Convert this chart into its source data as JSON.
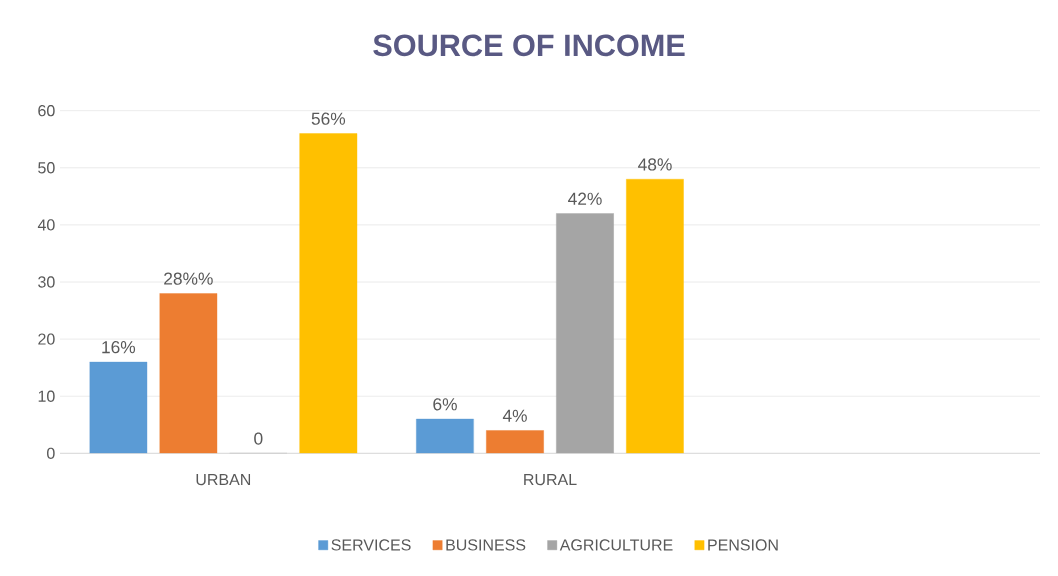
{
  "chart_data": {
    "type": "bar",
    "title": "SOURCE OF INCOME",
    "categories": [
      "URBAN",
      "RURAL",
      null
    ],
    "series": [
      {
        "name": "SERVICES",
        "color": "#5b9bd5",
        "values": [
          16,
          6,
          null
        ],
        "value_labels": [
          "16%",
          "6%",
          null
        ]
      },
      {
        "name": "BUSINESS",
        "color": "#ed7d31",
        "values": [
          28,
          4,
          null
        ],
        "value_labels": [
          "28%%",
          "4%",
          null
        ]
      },
      {
        "name": "AGRICULTURE",
        "color": "#a5a5a5",
        "values": [
          0,
          42,
          null
        ],
        "value_labels": [
          "0",
          "42%",
          null
        ]
      },
      {
        "name": "PENSION",
        "color": "#ffc000",
        "values": [
          56,
          48,
          null
        ],
        "value_labels": [
          "56%",
          "48%",
          null
        ]
      }
    ],
    "ylim": [
      0,
      60
    ],
    "yticks": [
      0,
      10,
      20,
      30,
      40,
      50,
      60
    ],
    "grid": "y",
    "legend": "bottom"
  }
}
